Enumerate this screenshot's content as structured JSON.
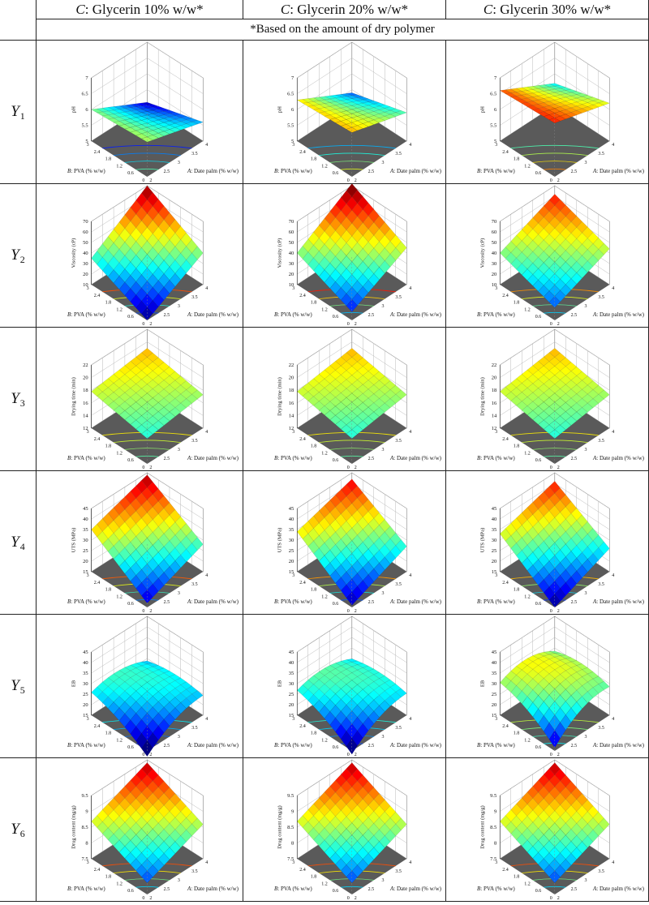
{
  "header": {
    "columns": [
      {
        "factor": "C",
        "label": ": Glycerin 10% w/w*"
      },
      {
        "factor": "C",
        "label": ": Glycerin 20% w/w*"
      },
      {
        "factor": "C",
        "label": ": Glycerin 30% w/w*"
      }
    ],
    "note": "*Based on the amount of dry polymer"
  },
  "rows": [
    {
      "label": "Y",
      "sub": "1"
    },
    {
      "label": "Y",
      "sub": "2"
    },
    {
      "label": "Y",
      "sub": "3"
    },
    {
      "label": "Y",
      "sub": "4"
    },
    {
      "label": "Y",
      "sub": "5"
    },
    {
      "label": "Y",
      "sub": "6"
    }
  ],
  "axes": {
    "a_factor": "A",
    "a_label": ": Date palm (% w/w)",
    "b_factor": "B",
    "b_label": ": PVA (% w/w)",
    "a_ticks": [
      "2",
      "2.5",
      "3",
      "3.5",
      "4"
    ],
    "b_ticks": [
      "0",
      "0.6",
      "1.2",
      "1.8",
      "2.4",
      "3"
    ]
  },
  "colors": {
    "floor": "#5a5a5a",
    "grid": "#bbbbbb",
    "frame": "#222222"
  },
  "chart_data": [
    {
      "type": "surface",
      "response": "pH",
      "zlabel": "pH",
      "zticks": [
        "5",
        "5.5",
        "6",
        "6.5",
        "7"
      ],
      "zlim": [
        5,
        7
      ],
      "glycerin": [
        10,
        20,
        30
      ],
      "corners": [
        [
          6.1,
          5.6,
          6.0,
          5.1
        ],
        [
          6.4,
          5.9,
          6.3,
          5.4
        ],
        [
          6.7,
          6.2,
          6.6,
          5.7
        ]
      ],
      "curvature": [
        0,
        0,
        0
      ]
    },
    {
      "type": "surface",
      "response": "Viscosity",
      "zlabel": "Viscosity (cP)",
      "zticks": [
        "10",
        "20",
        "30",
        "40",
        "50",
        "60",
        "70"
      ],
      "zlim": [
        10,
        70
      ],
      "glycerin": [
        10,
        20,
        30
      ],
      "corners": [
        [
          10,
          40,
          35,
          70
        ],
        [
          18,
          45,
          40,
          72
        ],
        [
          22,
          44,
          40,
          62
        ]
      ],
      "curvature": [
        0,
        0,
        0
      ]
    },
    {
      "type": "surface",
      "response": "Drying time",
      "zlabel": "Drying time (min)",
      "zticks": [
        "12",
        "14",
        "16",
        "18",
        "20",
        "22"
      ],
      "zlim": [
        12,
        22
      ],
      "glycerin": [
        10,
        20,
        30
      ],
      "corners": [
        [
          16.0,
          17.3,
          17.8,
          19.0
        ],
        [
          16.0,
          17.3,
          17.8,
          19.0
        ],
        [
          16.0,
          17.3,
          17.8,
          19.0
        ]
      ],
      "curvature": [
        0,
        0,
        0
      ]
    },
    {
      "type": "surface",
      "response": "UTS",
      "zlabel": "UTS (MPa)",
      "zticks": [
        "15",
        "20",
        "25",
        "30",
        "35",
        "40",
        "45"
      ],
      "zlim": [
        15,
        45
      ],
      "glycerin": [
        10,
        20,
        30
      ],
      "corners": [
        [
          17,
          28,
          35,
          44
        ],
        [
          16,
          27,
          34,
          42
        ],
        [
          15,
          26,
          33,
          41
        ]
      ],
      "curvature": [
        0,
        0,
        0
      ]
    },
    {
      "type": "surface",
      "response": "EB",
      "zlabel": "EB",
      "zticks": [
        "15",
        "20",
        "25",
        "30",
        "35",
        "40",
        "45"
      ],
      "zlim": [
        15,
        45
      ],
      "glycerin": [
        10,
        20,
        30
      ],
      "corners": [
        [
          18,
          30,
          30,
          28
        ],
        [
          19,
          31,
          31,
          29
        ],
        [
          24,
          36,
          36,
          34
        ]
      ],
      "curvature": [
        12,
        12,
        16
      ]
    },
    {
      "type": "surface",
      "response": "Drug content",
      "zlabel": "Drug content (mg/g)",
      "zticks": [
        "7.5",
        "8",
        "8.5",
        "9",
        "9.5"
      ],
      "zlim": [
        7.5,
        9.7
      ],
      "glycerin": [
        10,
        20,
        30
      ],
      "corners": [
        [
          7.9,
          8.7,
          8.8,
          9.6
        ],
        [
          7.9,
          8.7,
          8.8,
          9.6
        ],
        [
          7.9,
          8.7,
          8.8,
          9.6
        ]
      ],
      "curvature": [
        0,
        0,
        0
      ]
    }
  ]
}
